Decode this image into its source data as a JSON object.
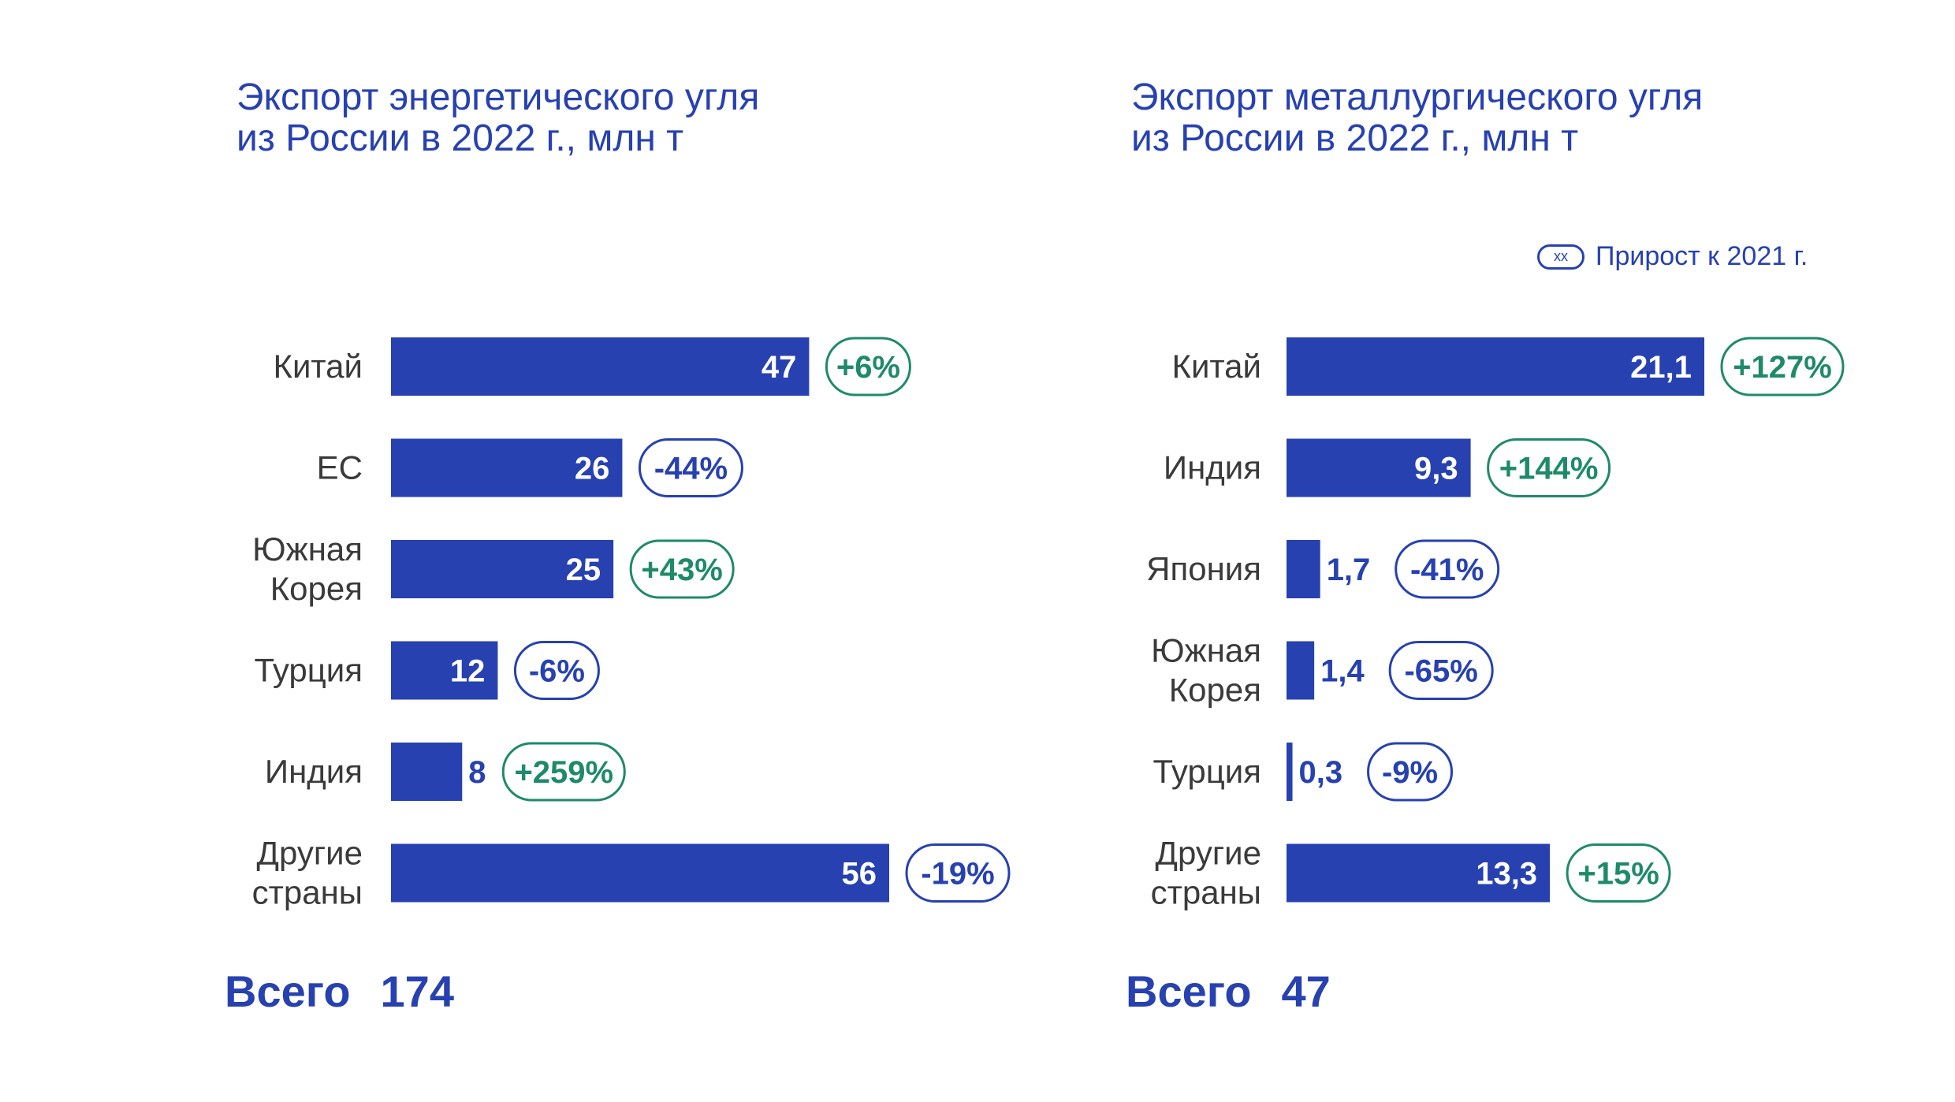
{
  "legend": {
    "symbol": "xx",
    "label": "Прирост к 2021 г."
  },
  "colors": {
    "bar": "#2741b0",
    "positive": "#1f8a6a",
    "negative": "#2741b0",
    "label": "#3a3a3a"
  },
  "chart_data": [
    {
      "type": "bar",
      "orientation": "horizontal",
      "title_lines": [
        "Экспорт энергетического угля",
        "из России в 2022 г., млн т"
      ],
      "categories": [
        [
          "Китай"
        ],
        [
          "ЕС"
        ],
        [
          "Южная",
          "Корея"
        ],
        [
          "Турция"
        ],
        [
          "Индия"
        ],
        [
          "Другие",
          "страны"
        ]
      ],
      "values": [
        47,
        26,
        25,
        12,
        8,
        56
      ],
      "value_labels": [
        "47",
        "26",
        "25",
        "12",
        "8",
        "56"
      ],
      "growth": [
        "+6%",
        "-44%",
        "+43%",
        "-6%",
        "+259%",
        "-19%"
      ],
      "total_label": "Всего",
      "total_value": "174"
    },
    {
      "type": "bar",
      "orientation": "horizontal",
      "title_lines": [
        "Экспорт металлургического угля",
        "из России в 2022 г., млн т"
      ],
      "categories": [
        [
          "Китай"
        ],
        [
          "Индия"
        ],
        [
          "Япония"
        ],
        [
          "Южная",
          "Корея"
        ],
        [
          "Турция"
        ],
        [
          "Другие",
          "страны"
        ]
      ],
      "values": [
        21.1,
        9.3,
        1.7,
        1.4,
        0.3,
        13.3
      ],
      "value_labels": [
        "21,1",
        "9,3",
        "1,7",
        "1,4",
        "0,3",
        "13,3"
      ],
      "growth": [
        "+127%",
        "+144%",
        "-41%",
        "-65%",
        "-9%",
        "+15%"
      ],
      "total_label": "Всего",
      "total_value": "47"
    }
  ]
}
